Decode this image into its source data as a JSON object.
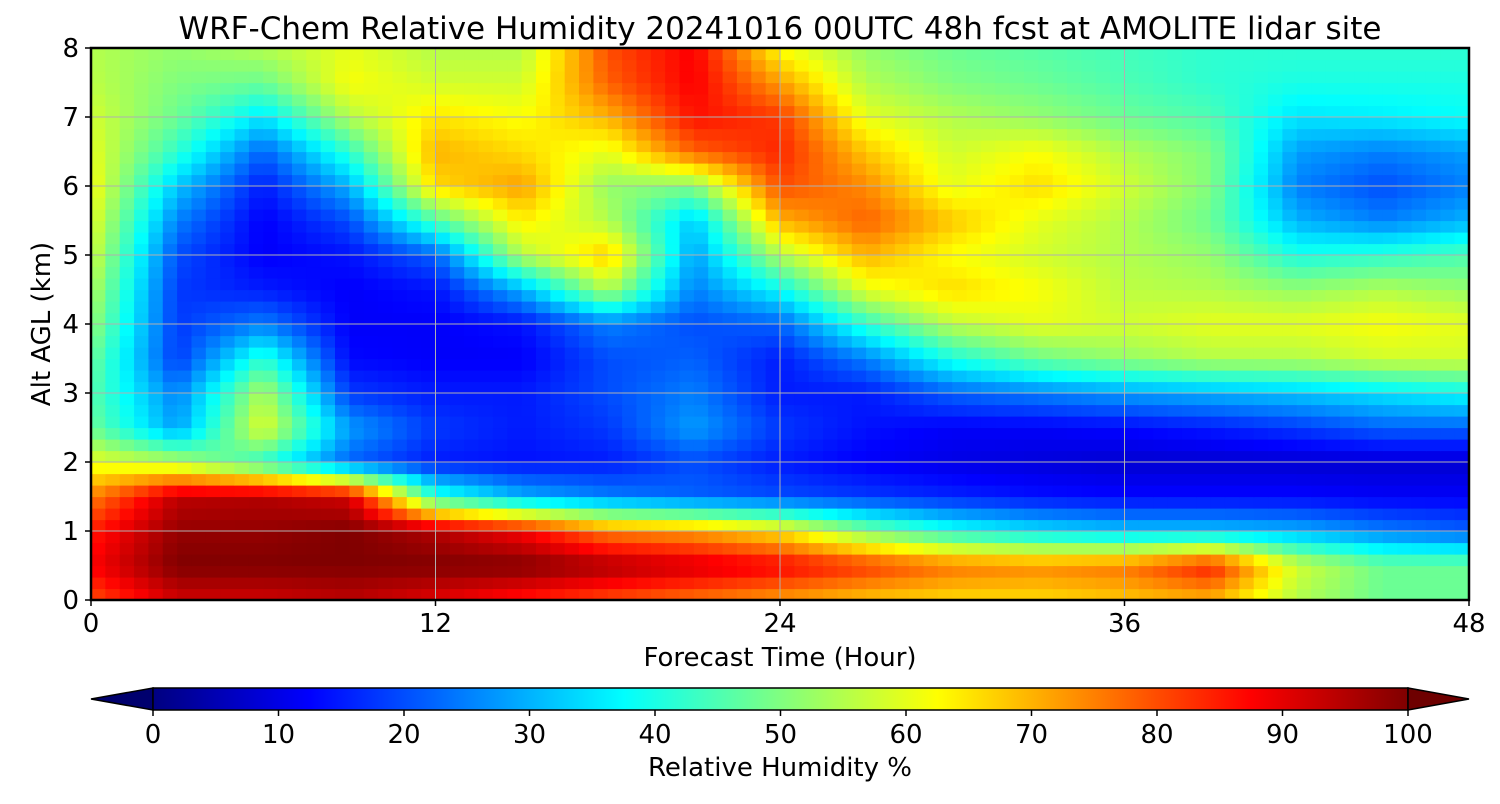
{
  "chart_data": {
    "type": "heatmap",
    "title": "WRF-Chem Relative Humidity 20241016 00UTC 48h fcst at AMOLITE lidar site",
    "xlabel": "Forecast Time (Hour)",
    "ylabel": "Alt AGL (km)",
    "xlim": [
      0,
      48
    ],
    "ylim": [
      0,
      8
    ],
    "xticks": [
      0,
      12,
      24,
      36,
      48
    ],
    "yticks": [
      0,
      1,
      2,
      3,
      4,
      5,
      6,
      7,
      8
    ],
    "grid": true,
    "x": [
      0,
      3,
      6,
      9,
      12,
      15,
      18,
      21,
      24,
      27,
      30,
      33,
      36,
      39,
      42,
      45,
      48
    ],
    "y": [
      0,
      0.5,
      1,
      1.5,
      2,
      2.5,
      3,
      3.5,
      4,
      4.5,
      5,
      5.5,
      6,
      6.5,
      7,
      7.5,
      8
    ],
    "z": [
      [
        80,
        92,
        92,
        94,
        90,
        85,
        80,
        76,
        72,
        68,
        66,
        66,
        68,
        70,
        55,
        48,
        48
      ],
      [
        88,
        100,
        100,
        100,
        100,
        100,
        96,
        92,
        88,
        82,
        76,
        74,
        76,
        85,
        58,
        48,
        48
      ],
      [
        85,
        98,
        98,
        100,
        95,
        88,
        75,
        72,
        65,
        50,
        40,
        35,
        32,
        32,
        30,
        25,
        22
      ],
      [
        75,
        94,
        95,
        92,
        42,
        30,
        25,
        22,
        20,
        18,
        16,
        14,
        13,
        13,
        13,
        12,
        12
      ],
      [
        60,
        55,
        42,
        22,
        15,
        14,
        15,
        20,
        15,
        12,
        10,
        9,
        8,
        8,
        8,
        8,
        8
      ],
      [
        48,
        28,
        60,
        28,
        18,
        15,
        18,
        28,
        18,
        14,
        12,
        12,
        13,
        15,
        18,
        22,
        22
      ],
      [
        46,
        25,
        55,
        18,
        15,
        15,
        20,
        25,
        15,
        15,
        22,
        25,
        28,
        30,
        32,
        35,
        38
      ],
      [
        48,
        18,
        42,
        13,
        12,
        12,
        20,
        22,
        15,
        25,
        40,
        48,
        52,
        55,
        55,
        58,
        58
      ],
      [
        52,
        18,
        25,
        12,
        12,
        14,
        25,
        20,
        22,
        42,
        56,
        60,
        58,
        60,
        60,
        62,
        60
      ],
      [
        55,
        18,
        15,
        12,
        14,
        30,
        55,
        25,
        38,
        60,
        66,
        62,
        56,
        55,
        52,
        55,
        52
      ],
      [
        58,
        20,
        12,
        14,
        22,
        55,
        68,
        28,
        55,
        70,
        62,
        58,
        55,
        52,
        40,
        42,
        45
      ],
      [
        60,
        25,
        12,
        20,
        45,
        64,
        55,
        32,
        70,
        78,
        68,
        60,
        55,
        48,
        30,
        25,
        30
      ],
      [
        62,
        32,
        15,
        30,
        66,
        72,
        52,
        50,
        80,
        74,
        60,
        66,
        58,
        50,
        25,
        20,
        25
      ],
      [
        60,
        42,
        22,
        42,
        70,
        66,
        60,
        78,
        84,
        68,
        58,
        62,
        55,
        50,
        28,
        25,
        28
      ],
      [
        58,
        48,
        35,
        55,
        65,
        62,
        70,
        86,
        82,
        60,
        55,
        52,
        48,
        45,
        35,
        36,
        38
      ],
      [
        56,
        50,
        48,
        62,
        58,
        58,
        78,
        88,
        72,
        55,
        50,
        48,
        45,
        42,
        40,
        40,
        40
      ],
      [
        55,
        52,
        55,
        60,
        55,
        55,
        80,
        88,
        62,
        52,
        48,
        46,
        44,
        42,
        42,
        42,
        42
      ]
    ],
    "colorbar": {
      "label": "Relative Humidity %",
      "ticks": [
        0,
        10,
        20,
        30,
        40,
        50,
        60,
        70,
        80,
        90,
        100
      ],
      "min": 0,
      "max": 100,
      "extend": "both",
      "colormap": "jet"
    },
    "colors": {
      "grid": "#b0b0b0",
      "axis": "#000000"
    }
  }
}
